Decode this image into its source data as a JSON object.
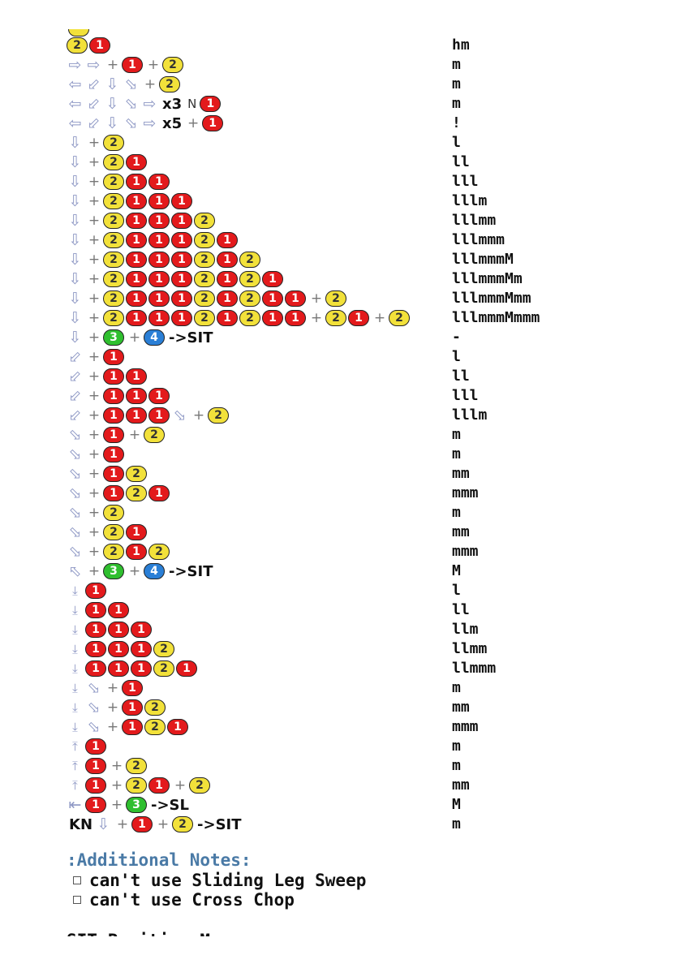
{
  "colors": {
    "btn1": "#e31a1c",
    "btn2": "#f2e13a",
    "btn3": "#2fbf2f",
    "btn4": "#2a7fd6",
    "arrow": "#8d97c4",
    "notes_title": "#4a7aa6"
  },
  "moves": [
    {
      "cmd": [
        "2",
        "1"
      ],
      "hits": "hm"
    },
    {
      "cmd": [
        "f",
        "f",
        "+",
        "1",
        "+",
        "2"
      ],
      "hits": "m"
    },
    {
      "cmd": [
        "b",
        "db",
        "d",
        "df",
        "+",
        "2"
      ],
      "hits": "m"
    },
    {
      "cmd": [
        "b",
        "db",
        "d",
        "df",
        "f",
        "t:x3",
        "n:N",
        "1"
      ],
      "hits": "m"
    },
    {
      "cmd": [
        "b",
        "db",
        "d",
        "df",
        "f",
        "t:x5",
        "+",
        "1"
      ],
      "hits": "!"
    },
    {
      "cmd": [
        "d",
        "+",
        "2"
      ],
      "hits": "l"
    },
    {
      "cmd": [
        "d",
        "+",
        "2",
        "1"
      ],
      "hits": "ll"
    },
    {
      "cmd": [
        "d",
        "+",
        "2",
        "1",
        "1"
      ],
      "hits": "lll"
    },
    {
      "cmd": [
        "d",
        "+",
        "2",
        "1",
        "1",
        "1"
      ],
      "hits": "lllm"
    },
    {
      "cmd": [
        "d",
        "+",
        "2",
        "1",
        "1",
        "1",
        "2"
      ],
      "hits": "lllmm"
    },
    {
      "cmd": [
        "d",
        "+",
        "2",
        "1",
        "1",
        "1",
        "2",
        "1"
      ],
      "hits": "lllmmm"
    },
    {
      "cmd": [
        "d",
        "+",
        "2",
        "1",
        "1",
        "1",
        "2",
        "1",
        "2"
      ],
      "hits": "lllmmmM"
    },
    {
      "cmd": [
        "d",
        "+",
        "2",
        "1",
        "1",
        "1",
        "2",
        "1",
        "2",
        "1"
      ],
      "hits": "lllmmmMm"
    },
    {
      "cmd": [
        "d",
        "+",
        "2",
        "1",
        "1",
        "1",
        "2",
        "1",
        "2",
        "1",
        "1",
        "+",
        "2"
      ],
      "hits": "lllmmmMmm"
    },
    {
      "cmd": [
        "d",
        "+",
        "2",
        "1",
        "1",
        "1",
        "2",
        "1",
        "2",
        "1",
        "1",
        "+",
        "2",
        "1",
        "+",
        "2"
      ],
      "hits": "lllmmmMmmm"
    },
    {
      "cmd": [
        "d",
        "+",
        "3",
        "+",
        "4",
        "t:->SIT"
      ],
      "hits": "-"
    },
    {
      "cmd": [
        "db",
        "+",
        "1"
      ],
      "hits": "l"
    },
    {
      "cmd": [
        "db",
        "+",
        "1",
        "1"
      ],
      "hits": "ll"
    },
    {
      "cmd": [
        "db",
        "+",
        "1",
        "1",
        "1"
      ],
      "hits": "lll"
    },
    {
      "cmd": [
        "db",
        "+",
        "1",
        "1",
        "1",
        "df",
        "+",
        "2"
      ],
      "hits": "lllm"
    },
    {
      "cmd": [
        "df",
        "+",
        "1",
        "+",
        "2"
      ],
      "hits": "m"
    },
    {
      "cmd": [
        "df",
        "+",
        "1"
      ],
      "hits": "m"
    },
    {
      "cmd": [
        "df",
        "+",
        "1",
        "2"
      ],
      "hits": "mm"
    },
    {
      "cmd": [
        "df",
        "+",
        "1",
        "2",
        "1"
      ],
      "hits": "mmm"
    },
    {
      "cmd": [
        "df",
        "+",
        "2"
      ],
      "hits": "m"
    },
    {
      "cmd": [
        "df",
        "+",
        "2",
        "1"
      ],
      "hits": "mm"
    },
    {
      "cmd": [
        "df",
        "+",
        "2",
        "1",
        "2"
      ],
      "hits": "mmm"
    },
    {
      "cmd": [
        "ub",
        "+",
        "3",
        "+",
        "4",
        "t:->SIT"
      ],
      "hits": "M"
    },
    {
      "cmd": [
        "ds",
        "1"
      ],
      "hits": "l"
    },
    {
      "cmd": [
        "ds",
        "1",
        "1"
      ],
      "hits": "ll"
    },
    {
      "cmd": [
        "ds",
        "1",
        "1",
        "1"
      ],
      "hits": "llm"
    },
    {
      "cmd": [
        "ds",
        "1",
        "1",
        "1",
        "2"
      ],
      "hits": "llmm"
    },
    {
      "cmd": [
        "ds",
        "1",
        "1",
        "1",
        "2",
        "1"
      ],
      "hits": "llmmm"
    },
    {
      "cmd": [
        "ds",
        "df",
        "+",
        "1"
      ],
      "hits": "m"
    },
    {
      "cmd": [
        "ds",
        "df",
        "+",
        "1",
        "2"
      ],
      "hits": "mm"
    },
    {
      "cmd": [
        "ds",
        "df",
        "+",
        "1",
        "2",
        "1"
      ],
      "hits": "mmm"
    },
    {
      "cmd": [
        "us",
        "1"
      ],
      "hits": "m"
    },
    {
      "cmd": [
        "us",
        "1",
        "+",
        "2"
      ],
      "hits": "m"
    },
    {
      "cmd": [
        "us",
        "1",
        "+",
        "2",
        "1",
        "+",
        "2"
      ],
      "hits": "mm"
    },
    {
      "cmd": [
        "bs",
        "1",
        "+",
        "3",
        "t:->SL"
      ],
      "hits": "M"
    },
    {
      "cmd": [
        "t:KN",
        "dh",
        "+",
        "1",
        "+",
        "2",
        "t:->SIT"
      ],
      "hits": "m"
    }
  ],
  "notes": {
    "title": ":Additional Notes:",
    "items": [
      "can't use Sliding Leg Sweep",
      "can't use Cross Chop"
    ],
    "cut_heading": "SIT Position Moves"
  }
}
